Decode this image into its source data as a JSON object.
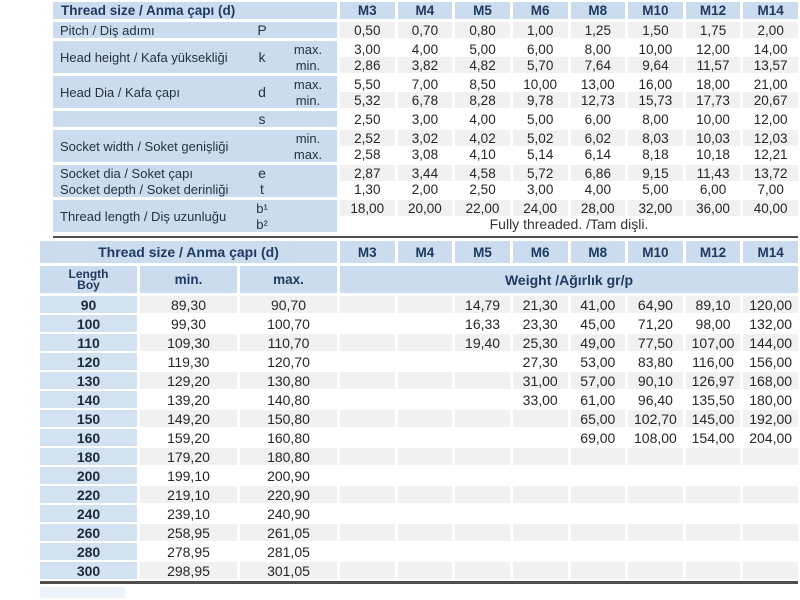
{
  "colors": {
    "header_blue": "#cbdcee",
    "length_cell_blue": "#d3e2f1",
    "stripe_gray": "#f1f1f1",
    "rule_dark": "#4f4f4f",
    "header_text": "#1f3a60",
    "body_text": "#262626"
  },
  "spec_table": {
    "header_label": "Thread size / Anma çapı (d)",
    "sizes": [
      "M3",
      "M4",
      "M5",
      "M6",
      "M8",
      "M10",
      "M12",
      "M14"
    ],
    "groups": [
      {
        "label": "Pitch / Diş adımı",
        "sym": "P",
        "subs": [
          {
            "qual": "",
            "shade": "gray",
            "values": [
              "0,50",
              "0,70",
              "0,80",
              "1,00",
              "1,25",
              "1,50",
              "1,75",
              "2,00"
            ]
          }
        ]
      },
      {
        "label": "Head height / Kafa yüksekliği",
        "sym": "k",
        "subs": [
          {
            "qual": "max.",
            "shade": "white",
            "values": [
              "3,00",
              "4,00",
              "5,00",
              "6,00",
              "8,00",
              "10,00",
              "12,00",
              "14,00"
            ]
          },
          {
            "qual": "min.",
            "shade": "gray",
            "values": [
              "2,86",
              "3,82",
              "4,82",
              "5,70",
              "7,64",
              "9,64",
              "11,57",
              "13,57"
            ]
          }
        ]
      },
      {
        "label": "Head Dia / Kafa çapı",
        "sym": "d",
        "subs": [
          {
            "qual": "max.",
            "shade": "white",
            "values": [
              "5,50",
              "7,00",
              "8,50",
              "10,00",
              "13,00",
              "16,00",
              "18,00",
              "21,00"
            ]
          },
          {
            "qual": "min.",
            "shade": "gray",
            "values": [
              "5,32",
              "6,78",
              "8,28",
              "9,78",
              "12,73",
              "15,73",
              "17,73",
              "20,67"
            ]
          }
        ]
      },
      {
        "label": "",
        "sym": "s",
        "subs": [
          {
            "qual": "",
            "shade": "white",
            "values": [
              "2,50",
              "3,00",
              "4,00",
              "5,00",
              "6,00",
              "8,00",
              "10,00",
              "12,00"
            ]
          }
        ]
      },
      {
        "label": "Socket width / Soket genişliği",
        "sym": "",
        "subs": [
          {
            "qual": "min.",
            "shade": "gray",
            "values": [
              "2,52",
              "3,02",
              "4,02",
              "5,02",
              "6,02",
              "8,03",
              "10,03",
              "12,03"
            ]
          },
          {
            "qual": "max.",
            "shade": "white",
            "values": [
              "2,58",
              "3,08",
              "4,10",
              "5,14",
              "6,14",
              "8,18",
              "10,18",
              "12,21"
            ]
          }
        ]
      },
      {
        "lines": [
          {
            "label": "Socket dia / Soket çapı",
            "sym": "e"
          },
          {
            "label": "Socket depth / Soket derinliği",
            "sym": "t"
          }
        ],
        "subs": [
          {
            "shade": "gray",
            "values": [
              "2,87",
              "3,44",
              "4,58",
              "5,72",
              "6,86",
              "9,15",
              "11,43",
              "13,72"
            ]
          },
          {
            "shade": "white",
            "values": [
              "1,30",
              "2,00",
              "2,50",
              "3,00",
              "4,00",
              "5,00",
              "6,00",
              "7,00"
            ]
          }
        ]
      },
      {
        "label": "Thread length / Diş uzunluğu",
        "sym_lines": [
          "b¹",
          "b²"
        ],
        "subs": [
          {
            "shade": "gray",
            "values": [
              "18,00",
              "20,00",
              "22,00",
              "24,00",
              "28,00",
              "32,00",
              "36,00",
              "40,00"
            ]
          },
          {
            "shade": "white",
            "span": "Fully threaded. /Tam dişli."
          }
        ]
      }
    ]
  },
  "weight_table": {
    "header_label": "Thread size / Anma çapı (d)",
    "sizes": [
      "M3",
      "M4",
      "M5",
      "M6",
      "M8",
      "M10",
      "M12",
      "M14"
    ],
    "length_label_en": "Length",
    "length_label_tr": "Boy",
    "min_label": "min.",
    "max_label": "max.",
    "weight_label": "Weight /Ağırlık gr/p",
    "rows": [
      {
        "length": "90",
        "min": "89,30",
        "max": "90,70",
        "weights": [
          "",
          "",
          "14,79",
          "21,30",
          "41,00",
          "64,90",
          "89,10",
          "120,00"
        ]
      },
      {
        "length": "100",
        "min": "99,30",
        "max": "100,70",
        "weights": [
          "",
          "",
          "16,33",
          "23,30",
          "45,00",
          "71,20",
          "98,00",
          "132,00"
        ]
      },
      {
        "length": "110",
        "min": "109,30",
        "max": "110,70",
        "weights": [
          "",
          "",
          "19,40",
          "25,30",
          "49,00",
          "77,50",
          "107,00",
          "144,00"
        ]
      },
      {
        "length": "120",
        "min": "119,30",
        "max": "120,70",
        "weights": [
          "",
          "",
          "",
          "27,30",
          "53,00",
          "83,80",
          "116,00",
          "156,00"
        ]
      },
      {
        "length": "130",
        "min": "129,20",
        "max": "130,80",
        "weights": [
          "",
          "",
          "",
          "31,00",
          "57,00",
          "90,10",
          "126,97",
          "168,00"
        ]
      },
      {
        "length": "140",
        "min": "139,20",
        "max": "140,80",
        "weights": [
          "",
          "",
          "",
          "33,00",
          "61,00",
          "96,40",
          "135,50",
          "180,00"
        ]
      },
      {
        "length": "150",
        "min": "149,20",
        "max": "150,80",
        "weights": [
          "",
          "",
          "",
          "",
          "65,00",
          "102,70",
          "145,00",
          "192,00"
        ]
      },
      {
        "length": "160",
        "min": "159,20",
        "max": "160,80",
        "weights": [
          "",
          "",
          "",
          "",
          "69,00",
          "108,00",
          "154,00",
          "204,00"
        ]
      },
      {
        "length": "180",
        "min": "179,20",
        "max": "180,80",
        "weights": [
          "",
          "",
          "",
          "",
          "",
          "",
          "",
          ""
        ]
      },
      {
        "length": "200",
        "min": "199,10",
        "max": "200,90",
        "weights": [
          "",
          "",
          "",
          "",
          "",
          "",
          "",
          ""
        ]
      },
      {
        "length": "220",
        "min": "219,10",
        "max": "220,90",
        "weights": [
          "",
          "",
          "",
          "",
          "",
          "",
          "",
          ""
        ]
      },
      {
        "length": "240",
        "min": "239,10",
        "max": "240,90",
        "weights": [
          "",
          "",
          "",
          "",
          "",
          "",
          "",
          ""
        ]
      },
      {
        "length": "260",
        "min": "258,95",
        "max": "261,05",
        "weights": [
          "",
          "",
          "",
          "",
          "",
          "",
          "",
          ""
        ]
      },
      {
        "length": "280",
        "min": "278,95",
        "max": "281,05",
        "weights": [
          "",
          "",
          "",
          "",
          "",
          "",
          "",
          ""
        ]
      },
      {
        "length": "300",
        "min": "298,95",
        "max": "301,05",
        "weights": [
          "",
          "",
          "",
          "",
          "",
          "",
          "",
          ""
        ]
      }
    ]
  }
}
